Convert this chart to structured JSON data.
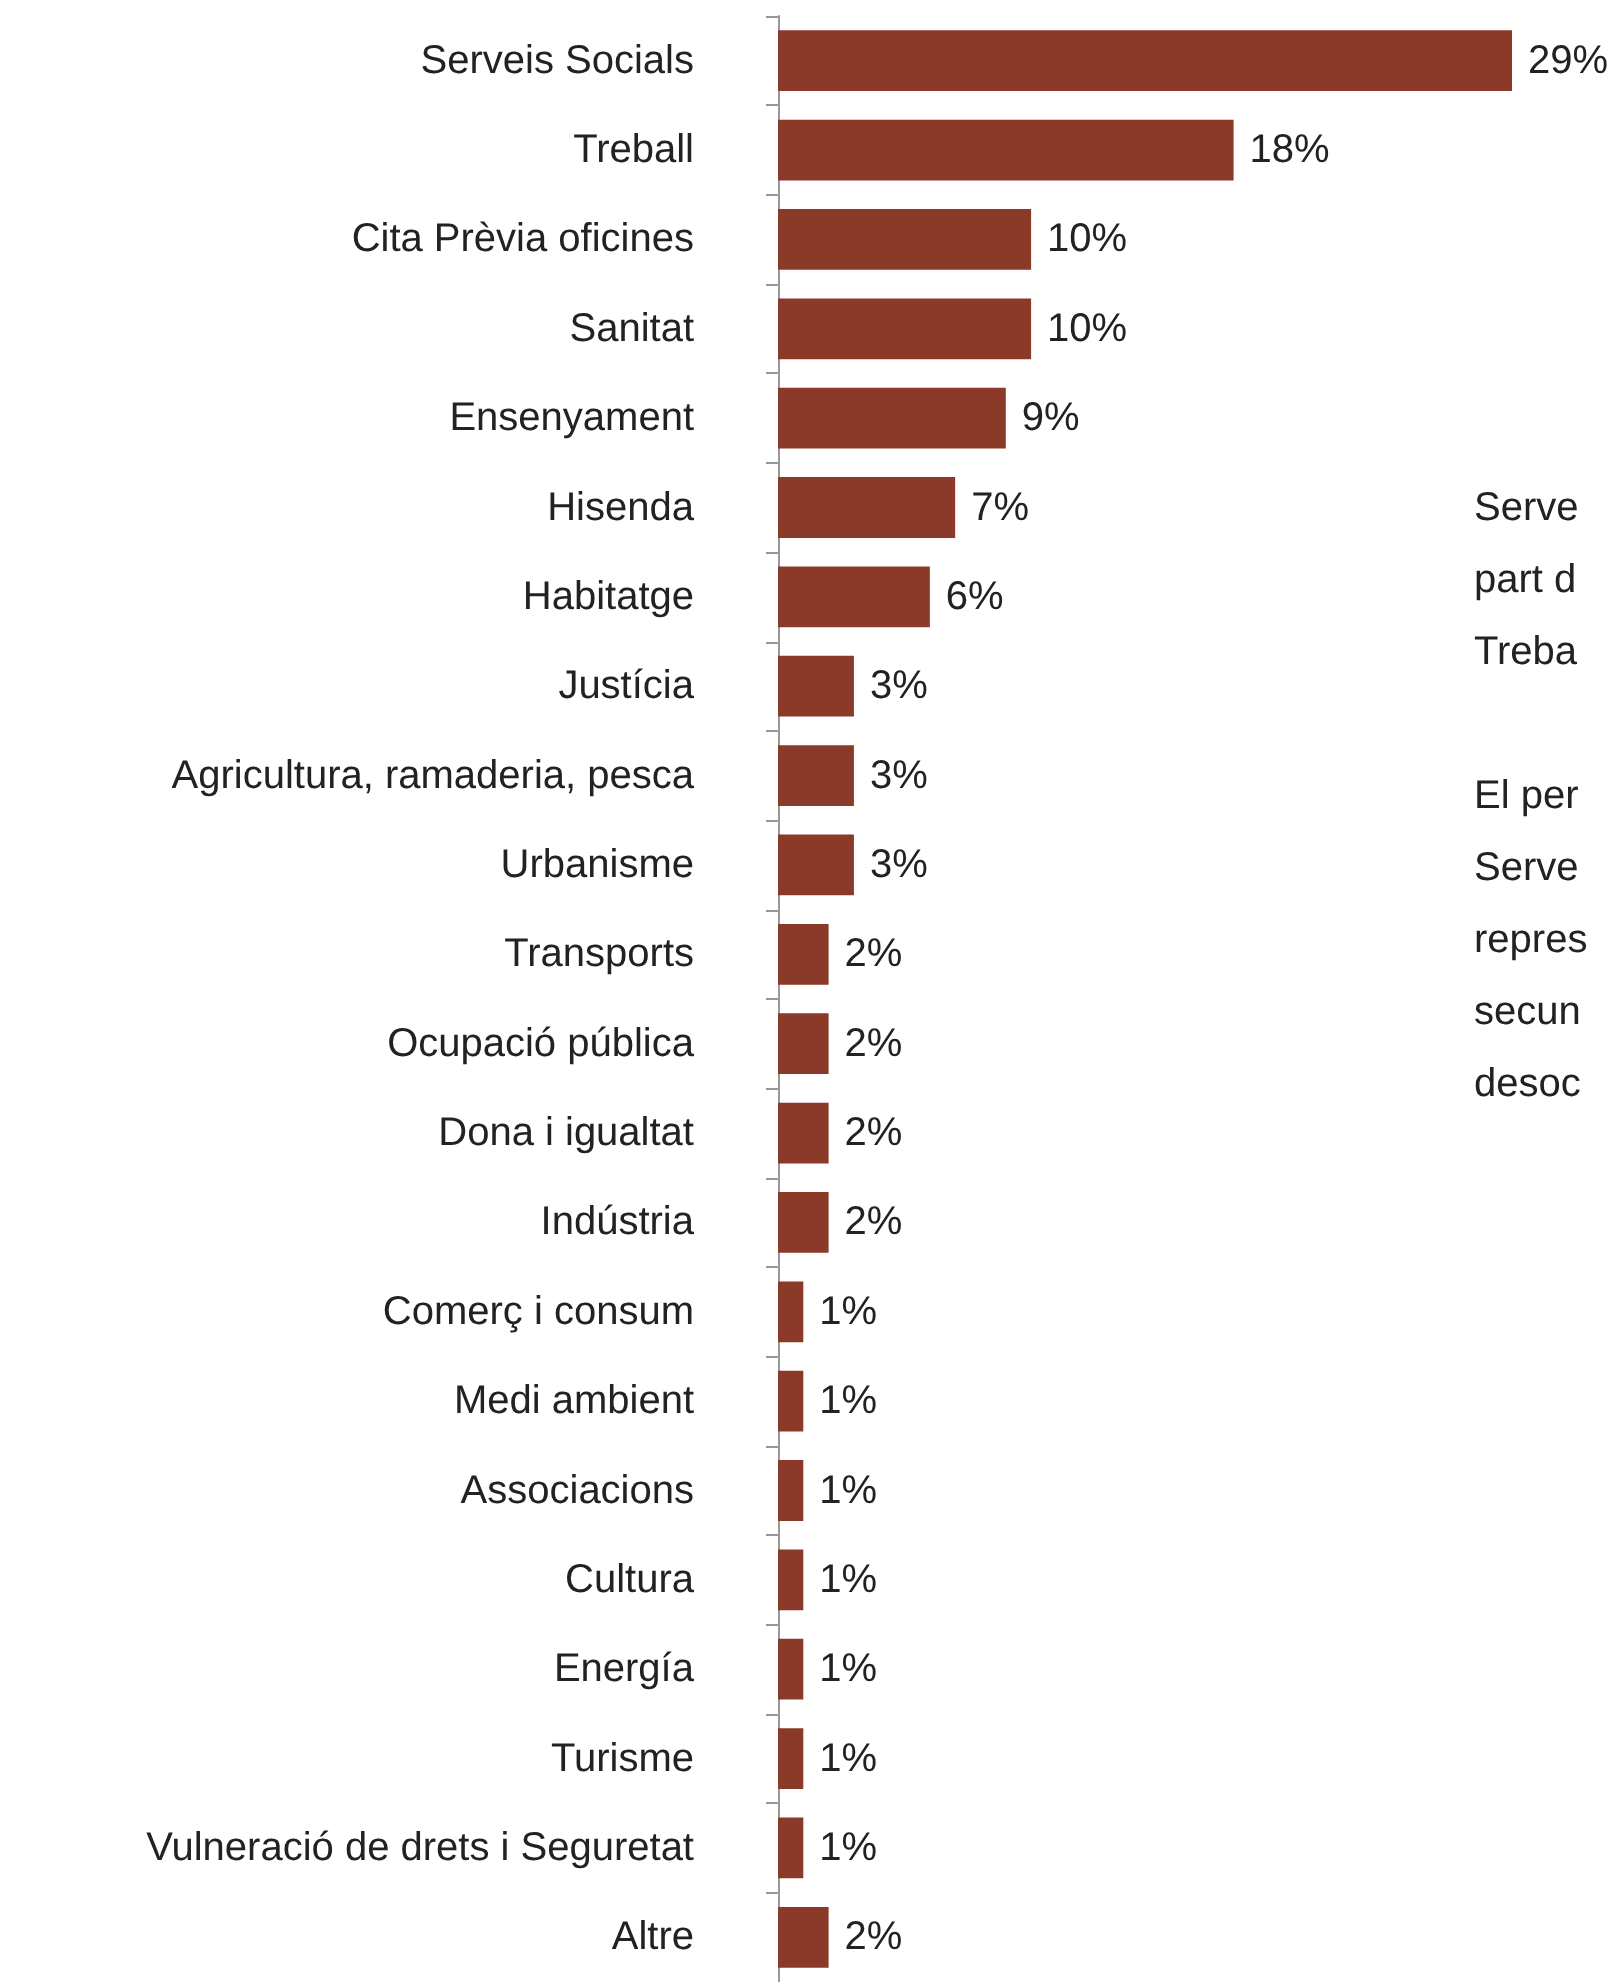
{
  "chart_data": {
    "type": "bar",
    "orientation": "horizontal",
    "categories": [
      "Serveis Socials",
      "Treball",
      "Cita Prèvia oficines",
      "Sanitat",
      "Ensenyament",
      "Hisenda",
      "Habitatge",
      "Justícia",
      "Agricultura, ramaderia, pesca",
      "Urbanisme",
      "Transports",
      "Ocupació pública",
      "Dona i igualtat",
      "Indústria",
      "Comerç i consum",
      "Medi ambient",
      "Associacions",
      "Cultura",
      "Energía",
      "Turisme",
      "Vulneració de drets i Seguretat",
      "Altre"
    ],
    "values": [
      29,
      18,
      10,
      10,
      9,
      7,
      6,
      3,
      3,
      3,
      2,
      2,
      2,
      2,
      1,
      1,
      1,
      1,
      1,
      1,
      1,
      2
    ],
    "value_labels": [
      "29%",
      "18%",
      "10%",
      "10%",
      "9%",
      "7%",
      "6%",
      "3%",
      "3%",
      "3%",
      "2%",
      "2%",
      "2%",
      "2%",
      "1%",
      "1%",
      "1%",
      "1%",
      "1%",
      "1%",
      "1%",
      "2%"
    ],
    "color": "#8b3a2a",
    "annotations": [
      "Serve",
      "part d",
      "Treba",
      "El per",
      "Serve",
      "repres",
      "secun",
      "desoc"
    ]
  }
}
